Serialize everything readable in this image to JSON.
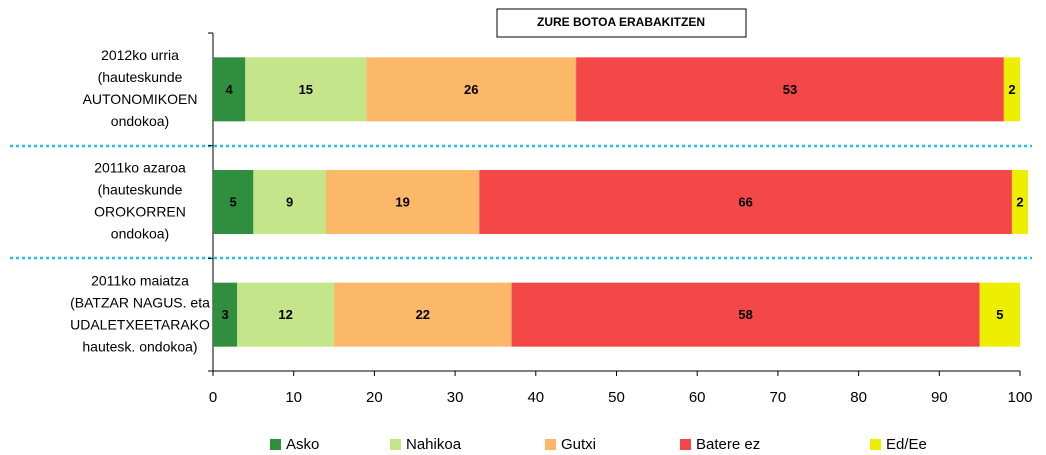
{
  "chart_data": {
    "type": "stacked-bar-horizontal",
    "title": "ZURE BOTOA ERABAKITZEN",
    "categories": [
      [
        "2012ko urria",
        "(hauteskunde",
        "AUTONOMIKOEN",
        "ondokoa)"
      ],
      [
        "2011ko azaroa",
        "(hauteskunde",
        "OROKORREN",
        "ondokoa)"
      ],
      [
        "2011ko maiatza",
        "(BATZAR NAGUS. eta",
        "UDALETXEETARAKO",
        "hautesk. ondokoa)"
      ]
    ],
    "series": [
      {
        "name": "Asko",
        "color": "#2f8f3f",
        "values": [
          4,
          5,
          3
        ]
      },
      {
        "name": "Nahikoa",
        "color": "#c5e58a",
        "values": [
          15,
          9,
          12
        ]
      },
      {
        "name": "Gutxi",
        "color": "#fbb868",
        "values": [
          26,
          19,
          22
        ]
      },
      {
        "name": "Batere ez",
        "color": "#f44848",
        "values": [
          53,
          66,
          58
        ]
      },
      {
        "name": "Ed/Ee",
        "color": "#eeee00",
        "values": [
          2,
          2,
          5
        ]
      }
    ],
    "xlim": [
      0,
      100
    ],
    "xticks": [
      0,
      10,
      20,
      30,
      40,
      50,
      60,
      70,
      80,
      90,
      100
    ]
  }
}
